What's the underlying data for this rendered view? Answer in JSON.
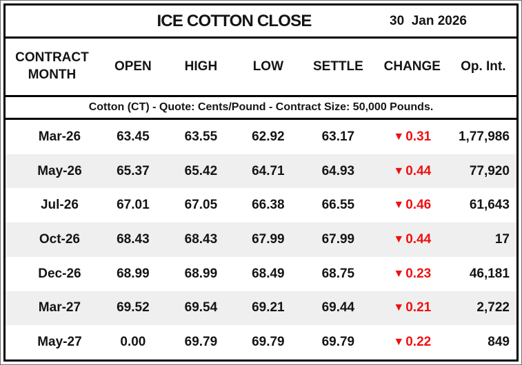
{
  "header": {
    "title": "ICE COTTON CLOSE",
    "date": "30  Jan 2026"
  },
  "table": {
    "columns": [
      {
        "key": "month",
        "label": "CONTRACT\nMONTH"
      },
      {
        "key": "open",
        "label": "OPEN"
      },
      {
        "key": "high",
        "label": "HIGH"
      },
      {
        "key": "low",
        "label": "LOW"
      },
      {
        "key": "settle",
        "label": "SETTLE"
      },
      {
        "key": "change",
        "label": "CHANGE"
      },
      {
        "key": "open_interest",
        "label": "Op. Int."
      }
    ],
    "subheader": "Cotton (CT) - Quote: Cents/Pound - Contract Size: 50,000 Pounds.",
    "rows": [
      {
        "month": "Mar-26",
        "open": "63.45",
        "high": "63.55",
        "low": "62.92",
        "settle": "63.17",
        "change": {
          "dir": "down",
          "value": "0.31"
        },
        "open_interest": "1,77,986"
      },
      {
        "month": "May-26",
        "open": "65.37",
        "high": "65.42",
        "low": "64.71",
        "settle": "64.93",
        "change": {
          "dir": "down",
          "value": "0.44"
        },
        "open_interest": "77,920"
      },
      {
        "month": "Jul-26",
        "open": "67.01",
        "high": "67.05",
        "low": "66.38",
        "settle": "66.55",
        "change": {
          "dir": "down",
          "value": "0.46"
        },
        "open_interest": "61,643"
      },
      {
        "month": "Oct-26",
        "open": "68.43",
        "high": "68.43",
        "low": "67.99",
        "settle": "67.99",
        "change": {
          "dir": "down",
          "value": "0.44"
        },
        "open_interest": "17"
      },
      {
        "month": "Dec-26",
        "open": "68.99",
        "high": "68.99",
        "low": "68.49",
        "settle": "68.75",
        "change": {
          "dir": "down",
          "value": "0.23"
        },
        "open_interest": "46,181"
      },
      {
        "month": "Mar-27",
        "open": "69.52",
        "high": "69.54",
        "low": "69.21",
        "settle": "69.44",
        "change": {
          "dir": "down",
          "value": "0.21"
        },
        "open_interest": "2,722"
      },
      {
        "month": "May-27",
        "open": "0.00",
        "high": "69.79",
        "low": "69.79",
        "settle": "69.79",
        "change": {
          "dir": "down",
          "value": "0.22"
        },
        "open_interest": "849"
      }
    ]
  },
  "icons": {
    "down_triangle": "▼"
  },
  "colors": {
    "negative": "#ee1111",
    "row_alt": "#efefef",
    "text": "#141414",
    "border": "#000000"
  },
  "chart_data": {
    "type": "table",
    "title": "ICE COTTON CLOSE",
    "date": "30 Jan 2026",
    "note": "Cotton (CT) - Quote: Cents/Pound - Contract Size: 50,000 Pounds.",
    "columns": [
      "CONTRACT MONTH",
      "OPEN",
      "HIGH",
      "LOW",
      "SETTLE",
      "CHANGE",
      "Op. Int."
    ],
    "rows": [
      [
        "Mar-26",
        63.45,
        63.55,
        62.92,
        63.17,
        -0.31,
        177986
      ],
      [
        "May-26",
        65.37,
        65.42,
        64.71,
        64.93,
        -0.44,
        77920
      ],
      [
        "Jul-26",
        67.01,
        67.05,
        66.38,
        66.55,
        -0.46,
        61643
      ],
      [
        "Oct-26",
        68.43,
        68.43,
        67.99,
        67.99,
        -0.44,
        17
      ],
      [
        "Dec-26",
        68.99,
        68.99,
        68.49,
        68.75,
        -0.23,
        46181
      ],
      [
        "Mar-27",
        69.52,
        69.54,
        69.21,
        69.44,
        -0.21,
        2722
      ],
      [
        "May-27",
        0.0,
        69.79,
        69.79,
        69.79,
        -0.22,
        849
      ]
    ]
  }
}
